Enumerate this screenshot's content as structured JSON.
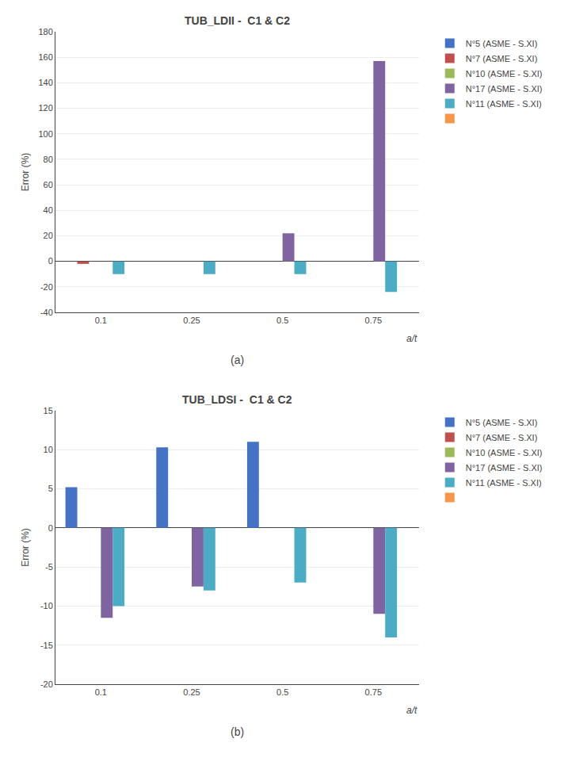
{
  "chart_data": [
    {
      "type": "bar",
      "title": "TUB_LDII -  C1 & C2",
      "ylabel": "Error (%)",
      "xlabel": "a/t",
      "annotations": [
        "(a)"
      ],
      "categories": [
        0.1,
        0.25,
        0.5,
        0.75
      ],
      "series": [
        {
          "name": "N°5 (ASME - S.XI)",
          "color": "#4472C4",
          "values": [
            0,
            0,
            0,
            0
          ]
        },
        {
          "name": "N°7 (ASME - S.XI)",
          "color": "#C0504D",
          "values": [
            -2,
            0,
            0,
            0
          ]
        },
        {
          "name": "N°10 (ASME - S.XI)",
          "color": "#9BBB59",
          "values": [
            0,
            0,
            0,
            0
          ]
        },
        {
          "name": "N°17 (ASME - S.XI)",
          "color": "#8064A2",
          "values": [
            0,
            0,
            22,
            157
          ]
        },
        {
          "name": "N°11 (ASME - S.XI)",
          "color": "#4BACC6",
          "values": [
            -10,
            -10,
            -10,
            -24
          ]
        },
        {
          "name": null,
          "color": "#F79646",
          "values": [
            null,
            null,
            null,
            null
          ]
        }
      ],
      "ylim": [
        -40,
        180
      ],
      "yticks": [
        -40,
        -20,
        0,
        20,
        40,
        60,
        80,
        100,
        120,
        140,
        160,
        180
      ],
      "grid": true,
      "legend": "right"
    },
    {
      "type": "bar",
      "title": "TUB_LDSI -  C1 & C2",
      "ylabel": "Error (%)",
      "xlabel": "a/t",
      "annotations": [
        "(b)"
      ],
      "categories": [
        0.1,
        0.25,
        0.5,
        0.75
      ],
      "series": [
        {
          "name": "N°5 (ASME - S.XI)",
          "color": "#4472C4",
          "values": [
            5.2,
            10.3,
            11.0,
            0
          ]
        },
        {
          "name": "N°7 (ASME - S.XI)",
          "color": "#C0504D",
          "values": [
            0,
            0,
            0,
            0
          ]
        },
        {
          "name": "N°10 (ASME - S.XI)",
          "color": "#9BBB59",
          "values": [
            0,
            0,
            0,
            0
          ]
        },
        {
          "name": "N°17 (ASME - S.XI)",
          "color": "#8064A2",
          "values": [
            -11.5,
            -7.5,
            0,
            -11.0
          ]
        },
        {
          "name": "N°11 (ASME - S.XI)",
          "color": "#4BACC6",
          "values": [
            -10.0,
            -8.0,
            -7.0,
            -14.0
          ]
        },
        {
          "name": null,
          "color": "#F79646",
          "values": [
            null,
            null,
            null,
            null
          ]
        }
      ],
      "ylim": [
        -20,
        15
      ],
      "yticks": [
        -20,
        -15,
        -10,
        -5,
        0,
        5,
        10,
        15
      ],
      "grid": true,
      "legend": "right"
    }
  ]
}
